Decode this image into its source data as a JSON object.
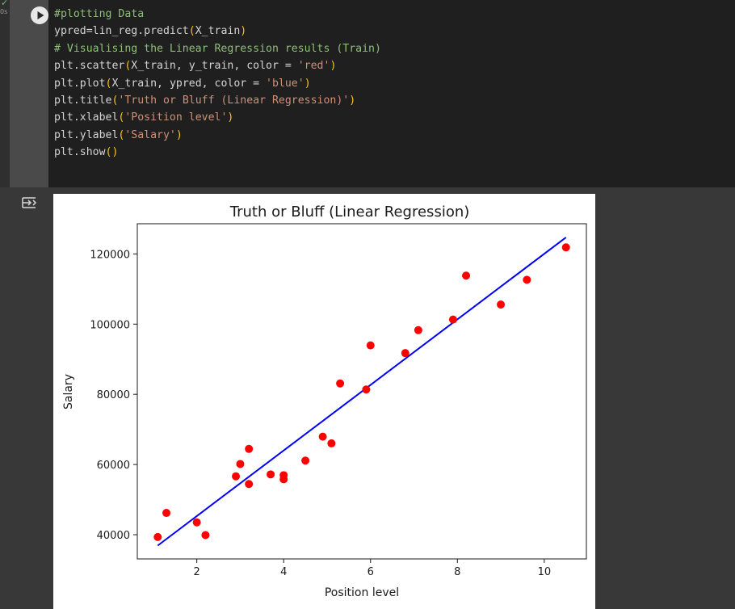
{
  "gutter": {
    "status_icon": "check-icon",
    "exec_time": "0s",
    "run_button_icon": "play-icon",
    "output_toggle_icon": "output-toggle-icon"
  },
  "code": {
    "lines": [
      [
        {
          "t": "#plotting Data",
          "c": "comment"
        }
      ],
      [
        {
          "t": "ypred=lin_reg.predict",
          "c": ""
        },
        {
          "t": "(",
          "c": "paren"
        },
        {
          "t": "X_train",
          "c": ""
        },
        {
          "t": ")",
          "c": "paren"
        }
      ],
      [
        {
          "t": "# Visualising the Linear Regression results (Train)",
          "c": "comment"
        }
      ],
      [
        {
          "t": "plt.scatter",
          "c": ""
        },
        {
          "t": "(",
          "c": "paren"
        },
        {
          "t": "X_train, y_train, color = ",
          "c": ""
        },
        {
          "t": "'red'",
          "c": "str"
        },
        {
          "t": ")",
          "c": "paren"
        }
      ],
      [
        {
          "t": "plt.plot",
          "c": ""
        },
        {
          "t": "(",
          "c": "paren"
        },
        {
          "t": "X_train, ypred, color = ",
          "c": ""
        },
        {
          "t": "'blue'",
          "c": "str"
        },
        {
          "t": ")",
          "c": "paren"
        }
      ],
      [
        {
          "t": "plt.title",
          "c": ""
        },
        {
          "t": "(",
          "c": "paren"
        },
        {
          "t": "'Truth or Bluff (Linear Regression)'",
          "c": "str"
        },
        {
          "t": ")",
          "c": "paren"
        }
      ],
      [
        {
          "t": "plt.xlabel",
          "c": ""
        },
        {
          "t": "(",
          "c": "paren"
        },
        {
          "t": "'Position level'",
          "c": "str"
        },
        {
          "t": ")",
          "c": "paren"
        }
      ],
      [
        {
          "t": "plt.ylabel",
          "c": ""
        },
        {
          "t": "(",
          "c": "paren"
        },
        {
          "t": "'Salary'",
          "c": "str"
        },
        {
          "t": ")",
          "c": "paren"
        }
      ],
      [
        {
          "t": "plt.show",
          "c": ""
        },
        {
          "t": "()",
          "c": "paren"
        }
      ]
    ]
  },
  "colors": {
    "comment": "#8fbf7a",
    "string": "#ce9178",
    "paren": "#f5c518",
    "scatter": "#ff0000",
    "line": "#0000ff"
  },
  "chart_data": {
    "type": "scatter",
    "title": "Truth or Bluff (Linear Regression)",
    "xlabel": "Position level",
    "ylabel": "Salary",
    "xlim": [
      0.63,
      10.97
    ],
    "ylim": [
      33100,
      128600
    ],
    "xticks": [
      2,
      4,
      6,
      8,
      10
    ],
    "yticks": [
      40000,
      60000,
      80000,
      100000,
      120000
    ],
    "grid": false,
    "series": [
      {
        "kind": "scatter",
        "color": "#ff0000",
        "points": [
          [
            1.1,
            39343
          ],
          [
            1.3,
            46205
          ],
          [
            2.0,
            43525
          ],
          [
            2.2,
            39891
          ],
          [
            2.9,
            56642
          ],
          [
            3.0,
            60150
          ],
          [
            3.2,
            54445
          ],
          [
            3.2,
            64445
          ],
          [
            3.7,
            57189
          ],
          [
            4.0,
            56957
          ],
          [
            4.0,
            55794
          ],
          [
            4.5,
            61111
          ],
          [
            4.9,
            67938
          ],
          [
            5.1,
            66029
          ],
          [
            5.3,
            83088
          ],
          [
            5.9,
            81363
          ],
          [
            6.0,
            93940
          ],
          [
            6.8,
            91738
          ],
          [
            7.1,
            98273
          ],
          [
            7.9,
            101302
          ],
          [
            8.2,
            113812
          ],
          [
            9.0,
            105582
          ],
          [
            9.6,
            112635
          ],
          [
            10.5,
            121872
          ]
        ]
      },
      {
        "kind": "line",
        "color": "#0000ff",
        "points": [
          [
            1.1,
            36900
          ],
          [
            10.5,
            124700
          ]
        ]
      }
    ]
  }
}
